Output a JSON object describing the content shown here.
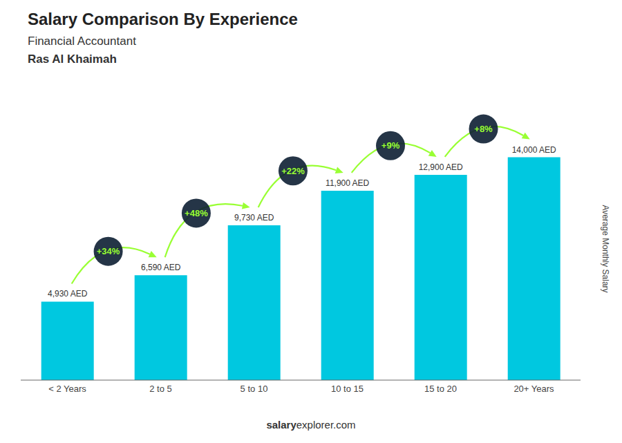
{
  "chart_data": {
    "type": "bar",
    "title": "Salary Comparison By Experience",
    "subtitle": "Financial Accountant",
    "subtitle2": "Ras Al Khaimah",
    "ylabel": "Average Monthly Salary",
    "footer": [
      "salary",
      "explorer.com"
    ],
    "categories": [
      "< 2 Years",
      "2 to 5",
      "5 to 10",
      "10 to 15",
      "15 to 20",
      "20+ Years"
    ],
    "values": [
      4930,
      6590,
      9730,
      11900,
      12900,
      14000
    ],
    "value_labels": [
      "4,930 AED",
      "6,590 AED",
      "9,730 AED",
      "11,900 AED",
      "12,900 AED",
      "14,000 AED"
    ],
    "data_labels": true,
    "color": "#00c8e0",
    "ylim": [
      0,
      16500
    ],
    "tick_labels": "x",
    "grid": false,
    "annotations": [
      {
        "text": "+34%",
        "color": "#99ff33"
      },
      {
        "text": "+48%",
        "color": "#99ff33"
      },
      {
        "text": "+22%",
        "color": "#99ff33"
      },
      {
        "text": "+9%",
        "color": "#99ff33"
      },
      {
        "text": "+8%",
        "color": "#99ff33"
      }
    ]
  }
}
